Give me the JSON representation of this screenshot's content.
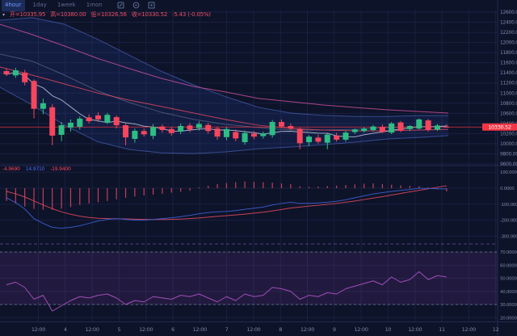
{
  "toolbar": {
    "timeframes": [
      {
        "label": "4hour",
        "active": true
      },
      {
        "label": "1day",
        "active": false
      },
      {
        "label": "1week",
        "active": false
      },
      {
        "label": "1mon",
        "active": false
      }
    ],
    "icons": [
      "chart-settings-icon",
      "indicators-icon",
      "fullscreen-icon"
    ]
  },
  "legend": {
    "marker": "▾",
    "fields": [
      {
        "label": "开",
        "value": "10335.95"
      },
      {
        "label": "高",
        "value": "10380.00"
      },
      {
        "label": "低",
        "value": "10326.56"
      },
      {
        "label": "收",
        "value": "10330.52"
      }
    ],
    "change": "-5.43 (-0.05%)"
  },
  "macd_legend": {
    "values": [
      {
        "text": "-4.9690",
        "color": "#f6465d"
      },
      {
        "text": "14.9710",
        "color": "#4a6cf7"
      },
      {
        "text": "-19.9400",
        "color": "#f6465d"
      }
    ]
  },
  "colors": {
    "background": "#0d1329",
    "grid": "#1a2140",
    "axis_text": "#7c88a6",
    "up": "#2ebd85",
    "down": "#f6465d",
    "price_line": "#f23645",
    "price_tag_bg": "#f23645",
    "price_tag_text": "#ffffff",
    "bb_fill": "rgba(47,82,189,0.16)",
    "bb_line": "rgba(96,130,235,0.55)",
    "bb_basis": "rgba(150,160,190,0.45)",
    "ma_fast": "#d4dbee",
    "ma_slow": "#d3455b",
    "ma_long": "#bb4b93",
    "macd_dif": "#3a5bc7",
    "macd_dea": "#d3455b",
    "macd_hist": "#d8445f",
    "rsi_line": "#b052c8",
    "rsi_fill": "rgba(130,60,160,0.18)",
    "level_dash": "#8a93ad",
    "divider_dash": "#6b4a8f",
    "frame": "#222a4e"
  },
  "chart_data": {
    "type": "candlestick",
    "title": "",
    "current_price": 10330.52,
    "price_axis_ticks": [
      {
        "t": "12600.00",
        "v": 12600
      },
      {
        "t": "12400.00",
        "v": 12400
      },
      {
        "t": "12200.00",
        "v": 12200
      },
      {
        "t": "12000.00",
        "v": 12000
      },
      {
        "t": "11800.00",
        "v": 11800
      },
      {
        "t": "11600.00",
        "v": 11600
      },
      {
        "t": "11400.00",
        "v": 11400
      },
      {
        "t": "11200.00",
        "v": 11200
      },
      {
        "t": "11000.00",
        "v": 11000
      },
      {
        "t": "10800.00",
        "v": 10800
      },
      {
        "t": "10600.00",
        "v": 10600
      },
      {
        "t": "10400.00",
        "v": 10400
      },
      {
        "t": "10200.00",
        "v": 10200
      },
      {
        "t": "10000.00",
        "v": 10000
      },
      {
        "t": "9800.00",
        "v": 9800
      },
      {
        "t": "9600.00",
        "v": 9600
      }
    ],
    "time_axis_labels": [
      "12:00",
      "4",
      "12:00",
      "5",
      "12:00",
      "6",
      "12:00",
      "7",
      "12:00",
      "8",
      "12:00",
      "9",
      "12:00",
      "10",
      "12:00",
      "11",
      "12:00",
      "12"
    ],
    "candles": [
      [
        11435,
        11490,
        11340,
        11370
      ],
      [
        11350,
        11500,
        11300,
        11450
      ],
      [
        11405,
        11460,
        11150,
        11215
      ],
      [
        11240,
        11270,
        10500,
        10690
      ],
      [
        10690,
        10890,
        10580,
        10800
      ],
      [
        10720,
        10780,
        9970,
        10160
      ],
      [
        10175,
        10430,
        10050,
        10365
      ],
      [
        10320,
        10480,
        10240,
        10415
      ],
      [
        10335,
        10540,
        10280,
        10495
      ],
      [
        10520,
        10580,
        10400,
        10445
      ],
      [
        10560,
        10620,
        10430,
        10480
      ],
      [
        10415,
        10610,
        10390,
        10570
      ],
      [
        10525,
        10560,
        10300,
        10365
      ],
      [
        10365,
        10400,
        9970,
        10125
      ],
      [
        10095,
        10300,
        10020,
        10255
      ],
      [
        10250,
        10300,
        10140,
        10185
      ],
      [
        10155,
        10390,
        10090,
        10330
      ],
      [
        10340,
        10380,
        10220,
        10270
      ],
      [
        10290,
        10330,
        10160,
        10210
      ],
      [
        10240,
        10400,
        10190,
        10350
      ],
      [
        10360,
        10410,
        10230,
        10280
      ],
      [
        10310,
        10440,
        10260,
        10390
      ],
      [
        10370,
        10410,
        10200,
        10250
      ],
      [
        10300,
        10340,
        10080,
        10140
      ],
      [
        10130,
        10330,
        10070,
        10290
      ],
      [
        10230,
        10280,
        10050,
        10105
      ],
      [
        10030,
        10260,
        9980,
        10210
      ],
      [
        10200,
        10250,
        10090,
        10140
      ],
      [
        10150,
        10240,
        10100,
        10200
      ],
      [
        10170,
        10470,
        10120,
        10430
      ],
      [
        10430,
        10480,
        10310,
        10340
      ],
      [
        10350,
        10400,
        10270,
        10300
      ],
      [
        10290,
        10320,
        9890,
        10010
      ],
      [
        10030,
        10170,
        9950,
        10140
      ],
      [
        10120,
        10180,
        10000,
        10040
      ],
      [
        10020,
        10200,
        9890,
        10180
      ],
      [
        10160,
        10220,
        10040,
        10080
      ],
      [
        10080,
        10250,
        10040,
        10220
      ],
      [
        10230,
        10300,
        10190,
        10280
      ],
      [
        10250,
        10330,
        10220,
        10300
      ],
      [
        10270,
        10370,
        10240,
        10340
      ],
      [
        10330,
        10380,
        10210,
        10230
      ],
      [
        10220,
        10430,
        10190,
        10400
      ],
      [
        10420,
        10450,
        10230,
        10260
      ],
      [
        10290,
        10370,
        10250,
        10350
      ],
      [
        10300,
        10500,
        10280,
        10480
      ],
      [
        10460,
        10490,
        10240,
        10270
      ],
      [
        10280,
        10390,
        10250,
        10360
      ],
      [
        10335.95,
        10380.0,
        10326.56,
        10330.52
      ]
    ],
    "overlays": {
      "ma_fast_period": 7,
      "bollinger": {
        "upper": [
          [
            0,
            12440
          ],
          [
            40,
            12490
          ],
          [
            80,
            12360
          ],
          [
            120,
            12070
          ],
          [
            160,
            11750
          ],
          [
            200,
            11430
          ],
          [
            240,
            11160
          ],
          [
            280,
            10925
          ],
          [
            320,
            10720
          ],
          [
            360,
            10605
          ],
          [
            400,
            10560
          ],
          [
            440,
            10540
          ],
          [
            480,
            10540
          ],
          [
            520,
            10555
          ],
          [
            555,
            10555
          ]
        ],
        "lower": [
          [
            0,
            11115
          ],
          [
            40,
            10765
          ],
          [
            80,
            10365
          ],
          [
            120,
            10045
          ],
          [
            160,
            9885
          ],
          [
            200,
            9820
          ],
          [
            240,
            9805
          ],
          [
            280,
            9840
          ],
          [
            320,
            9900
          ],
          [
            360,
            9935
          ],
          [
            400,
            9980
          ],
          [
            440,
            10030
          ],
          [
            480,
            10095
          ],
          [
            520,
            10125
          ],
          [
            555,
            10160
          ]
        ],
        "basis": [
          [
            0,
            11770
          ],
          [
            40,
            11630
          ],
          [
            80,
            11355
          ],
          [
            120,
            11050
          ],
          [
            160,
            10815
          ],
          [
            200,
            10620
          ],
          [
            240,
            10480
          ],
          [
            280,
            10380
          ],
          [
            320,
            10320
          ],
          [
            360,
            10270
          ],
          [
            400,
            10270
          ],
          [
            440,
            10285
          ],
          [
            480,
            10320
          ],
          [
            520,
            10335
          ],
          [
            555,
            10350
          ]
        ]
      },
      "ma_slow": [
        [
          0,
          11515
        ],
        [
          40,
          11355
        ],
        [
          80,
          11180
        ],
        [
          120,
          11005
        ],
        [
          160,
          10860
        ],
        [
          200,
          10735
        ],
        [
          240,
          10605
        ],
        [
          280,
          10475
        ],
        [
          320,
          10365
        ],
        [
          360,
          10300
        ],
        [
          400,
          10270
        ],
        [
          440,
          10255
        ],
        [
          480,
          10255
        ],
        [
          520,
          10270
        ],
        [
          555,
          10285
        ]
      ],
      "ma_long": [
        [
          0,
          12360
        ],
        [
          40,
          12155
        ],
        [
          80,
          11930
        ],
        [
          120,
          11690
        ],
        [
          160,
          11485
        ],
        [
          200,
          11290
        ],
        [
          240,
          11130
        ],
        [
          280,
          11020
        ],
        [
          320,
          10895
        ],
        [
          360,
          10830
        ],
        [
          400,
          10765
        ],
        [
          440,
          10715
        ],
        [
          480,
          10670
        ],
        [
          520,
          10635
        ],
        [
          555,
          10605
        ]
      ]
    },
    "macd": {
      "ticks": [
        {
          "t": "100.0000",
          "v": 100
        },
        {
          "t": "0.0000",
          "v": 0
        },
        {
          "t": "-100.0000",
          "v": -100
        },
        {
          "t": "-200.0000",
          "v": -200
        },
        {
          "t": "-300.0000",
          "v": -300
        }
      ],
      "dif": [
        -60,
        -90,
        -130,
        -190,
        -220,
        -245,
        -250,
        -245,
        -235,
        -220,
        -205,
        -195,
        -190,
        -195,
        -200,
        -200,
        -195,
        -190,
        -185,
        -178,
        -170,
        -160,
        -152,
        -148,
        -145,
        -140,
        -132,
        -125,
        -118,
        -105,
        -95,
        -88,
        -95,
        -95,
        -92,
        -88,
        -82,
        -72,
        -60,
        -48,
        -36,
        -28,
        -20,
        -14,
        -8,
        0,
        -2,
        -4,
        -4.97
      ],
      "dea": [
        -20,
        -35,
        -55,
        -80,
        -105,
        -128,
        -148,
        -163,
        -175,
        -183,
        -188,
        -190,
        -191,
        -192,
        -194,
        -195,
        -196,
        -196,
        -195,
        -193,
        -190,
        -186,
        -181,
        -176,
        -172,
        -167,
        -162,
        -156,
        -150,
        -142,
        -133,
        -124,
        -118,
        -112,
        -107,
        -101,
        -95,
        -88,
        -80,
        -71,
        -62,
        -53,
        -43,
        -33,
        -23,
        -13,
        -4,
        6,
        14.97
      ],
      "hist": [
        -80,
        -95,
        -115,
        -130,
        -135,
        -135,
        -128,
        -118,
        -105,
        -95,
        -88,
        -80,
        -70,
        -60,
        -52,
        -45,
        -40,
        -35,
        -28,
        -22,
        -15,
        5,
        15,
        25,
        32,
        38,
        42,
        40,
        38,
        35,
        30,
        25,
        12,
        8,
        10,
        14,
        16,
        20,
        24,
        28,
        30,
        26,
        22,
        18,
        15,
        12,
        5,
        -8,
        -19.94
      ]
    },
    "rsi": {
      "ticks": [
        {
          "t": "70.0000",
          "v": 70
        },
        {
          "t": "60.0000",
          "v": 60
        },
        {
          "t": "50.0000",
          "v": 50
        },
        {
          "t": "40.0000",
          "v": 40
        },
        {
          "t": "30.0000",
          "v": 30
        },
        {
          "t": "20.0000",
          "v": 20
        }
      ],
      "levels": [
        70,
        30
      ],
      "values": [
        45,
        47,
        43,
        34,
        37,
        25,
        29,
        33,
        36,
        35,
        37,
        38,
        35,
        30,
        33,
        32,
        36,
        35,
        34,
        37,
        36,
        38,
        35,
        32,
        36,
        33,
        38,
        36,
        37,
        43,
        42,
        40,
        34,
        37,
        36,
        39,
        38,
        42,
        44,
        46,
        48,
        45,
        51,
        47,
        49,
        55,
        49,
        52,
        51
      ]
    }
  }
}
